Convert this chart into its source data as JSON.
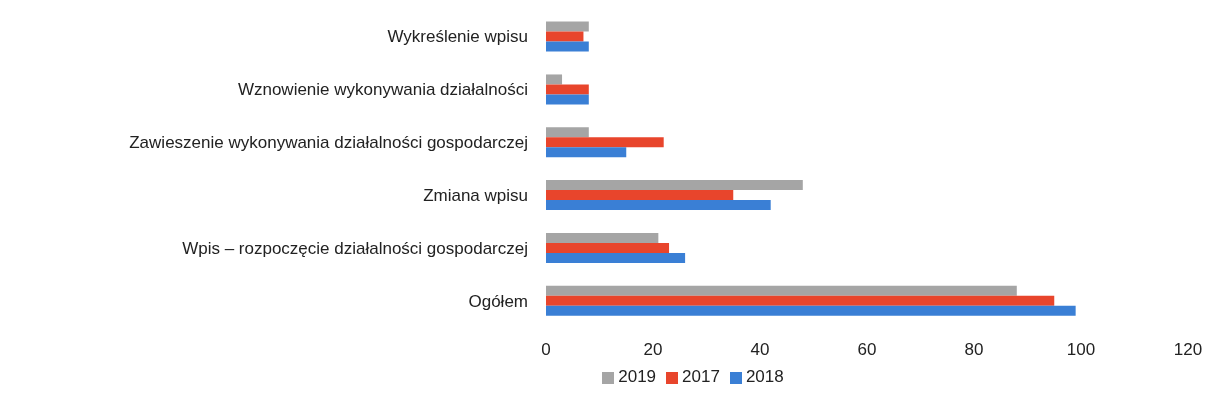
{
  "chart_data": {
    "type": "bar",
    "orientation": "horizontal",
    "categories": [
      "Wykreślenie wpisu",
      "Wznowienie wykonywania działalności",
      "Zawieszenie wykonywania działalności gospodarczej",
      "Zmiana wpisu",
      "Wpis – rozpoczęcie działalności gospodarczej",
      "Ogółem"
    ],
    "series": [
      {
        "name": "2019",
        "color": "#a5a5a5",
        "values": [
          8,
          3,
          8,
          48,
          21,
          88
        ]
      },
      {
        "name": "2017",
        "color": "#e8452c",
        "values": [
          7,
          8,
          22,
          35,
          23,
          95
        ]
      },
      {
        "name": "2018",
        "color": "#3a7fd5",
        "values": [
          8,
          8,
          15,
          42,
          26,
          99
        ]
      }
    ],
    "xlim": [
      0,
      120
    ],
    "xticks": [
      0,
      20,
      40,
      60,
      80,
      100,
      120
    ],
    "grid": false,
    "legend": "bottom"
  }
}
